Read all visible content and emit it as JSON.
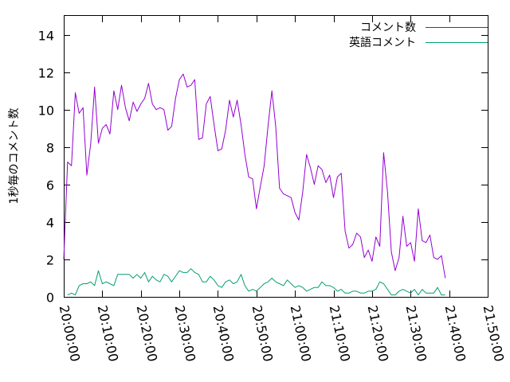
{
  "chart_data": {
    "type": "line",
    "ylabel": "1秒毎のコメント数",
    "xlabel": "",
    "title": "",
    "ylim": [
      0,
      15
    ],
    "xlim": [
      "20:00:00",
      "21:50:00"
    ],
    "y_ticks": [
      "0",
      "2",
      "4",
      "6",
      "8",
      "10",
      "12",
      "14"
    ],
    "x_ticks": [
      "20:00:00",
      "20:10:00",
      "20:20:00",
      "20:30:00",
      "20:40:00",
      "20:50:00",
      "21:00:00",
      "21:10:00",
      "21:20:00",
      "21:30:00",
      "21:40:00",
      "21:50:00"
    ],
    "grid": false,
    "legend_position": "top-right",
    "series": [
      {
        "name": "コメント数",
        "color": "#9400d3",
        "points": [
          [
            "20:00:00",
            2.0
          ],
          [
            "20:01:00",
            7.2
          ],
          [
            "20:02:00",
            7.0
          ],
          [
            "20:03:00",
            10.9
          ],
          [
            "20:04:00",
            9.8
          ],
          [
            "20:05:00",
            10.1
          ],
          [
            "20:06:00",
            6.5
          ],
          [
            "20:07:00",
            8.2
          ],
          [
            "20:08:00",
            11.2
          ],
          [
            "20:09:00",
            8.2
          ],
          [
            "20:10:00",
            9.0
          ],
          [
            "20:11:00",
            9.2
          ],
          [
            "20:12:00",
            8.7
          ],
          [
            "20:13:00",
            11.0
          ],
          [
            "20:14:00",
            10.0
          ],
          [
            "20:15:00",
            11.3
          ],
          [
            "20:16:00",
            10.1
          ],
          [
            "20:17:00",
            9.4
          ],
          [
            "20:18:00",
            10.4
          ],
          [
            "20:19:00",
            9.9
          ],
          [
            "20:20:00",
            10.3
          ],
          [
            "20:21:00",
            10.6
          ],
          [
            "20:22:00",
            11.4
          ],
          [
            "20:23:00",
            10.3
          ],
          [
            "20:24:00",
            10.0
          ],
          [
            "20:25:00",
            10.1
          ],
          [
            "20:26:00",
            10.0
          ],
          [
            "20:27:00",
            8.9
          ],
          [
            "20:28:00",
            9.1
          ],
          [
            "20:29:00",
            10.6
          ],
          [
            "20:30:00",
            11.6
          ],
          [
            "20:31:00",
            11.9
          ],
          [
            "20:32:00",
            11.2
          ],
          [
            "20:33:00",
            11.3
          ],
          [
            "20:34:00",
            11.6
          ],
          [
            "20:35:00",
            8.4
          ],
          [
            "20:36:00",
            8.5
          ],
          [
            "20:37:00",
            10.3
          ],
          [
            "20:38:00",
            10.7
          ],
          [
            "20:39:00",
            9.2
          ],
          [
            "20:40:00",
            7.8
          ],
          [
            "20:41:00",
            7.9
          ],
          [
            "20:42:00",
            8.9
          ],
          [
            "20:43:00",
            10.5
          ],
          [
            "20:44:00",
            9.6
          ],
          [
            "20:45:00",
            10.5
          ],
          [
            "20:46:00",
            9.2
          ],
          [
            "20:47:00",
            7.6
          ],
          [
            "20:48:00",
            6.4
          ],
          [
            "20:49:00",
            6.3
          ],
          [
            "20:50:00",
            4.7
          ],
          [
            "20:51:00",
            5.9
          ],
          [
            "20:52:00",
            7.0
          ],
          [
            "20:53:00",
            9.1
          ],
          [
            "20:54:00",
            11.0
          ],
          [
            "20:55:00",
            9.1
          ],
          [
            "20:56:00",
            5.8
          ],
          [
            "20:57:00",
            5.5
          ],
          [
            "20:58:00",
            5.4
          ],
          [
            "20:59:00",
            5.3
          ],
          [
            "21:00:00",
            4.5
          ],
          [
            "21:01:00",
            4.1
          ],
          [
            "21:02:00",
            5.6
          ],
          [
            "21:03:00",
            7.6
          ],
          [
            "21:04:00",
            6.9
          ],
          [
            "21:05:00",
            6.0
          ],
          [
            "21:06:00",
            7.0
          ],
          [
            "21:07:00",
            6.8
          ],
          [
            "21:08:00",
            6.1
          ],
          [
            "21:09:00",
            6.5
          ],
          [
            "21:10:00",
            5.3
          ],
          [
            "21:11:00",
            6.4
          ],
          [
            "21:12:00",
            6.6
          ],
          [
            "21:13:00",
            3.5
          ],
          [
            "21:14:00",
            2.6
          ],
          [
            "21:15:00",
            2.8
          ],
          [
            "21:16:00",
            3.4
          ],
          [
            "21:17:00",
            3.2
          ],
          [
            "21:18:00",
            2.1
          ],
          [
            "21:19:00",
            2.5
          ],
          [
            "21:20:00",
            1.9
          ],
          [
            "21:21:00",
            3.2
          ],
          [
            "21:22:00",
            2.7
          ],
          [
            "21:23:00",
            7.7
          ],
          [
            "21:24:00",
            5.6
          ],
          [
            "21:25:00",
            2.4
          ],
          [
            "21:26:00",
            1.4
          ],
          [
            "21:27:00",
            2.1
          ],
          [
            "21:28:00",
            4.3
          ],
          [
            "21:29:00",
            2.7
          ],
          [
            "21:30:00",
            2.9
          ],
          [
            "21:31:00",
            1.9
          ],
          [
            "21:32:00",
            4.7
          ],
          [
            "21:33:00",
            3.0
          ],
          [
            "21:34:00",
            2.9
          ],
          [
            "21:35:00",
            3.3
          ],
          [
            "21:36:00",
            2.1
          ],
          [
            "21:37:00",
            2.0
          ],
          [
            "21:38:00",
            2.2
          ],
          [
            "21:39:00",
            1.0
          ]
        ]
      },
      {
        "name": "英語コメント",
        "color": "#009e73",
        "points": [
          [
            "20:01:00",
            0.1
          ],
          [
            "20:02:00",
            0.2
          ],
          [
            "20:03:00",
            0.1
          ],
          [
            "20:04:00",
            0.6
          ],
          [
            "20:05:00",
            0.7
          ],
          [
            "20:06:00",
            0.7
          ],
          [
            "20:07:00",
            0.8
          ],
          [
            "20:08:00",
            0.6
          ],
          [
            "20:09:00",
            1.4
          ],
          [
            "20:10:00",
            0.7
          ],
          [
            "20:11:00",
            0.8
          ],
          [
            "20:12:00",
            0.7
          ],
          [
            "20:13:00",
            0.6
          ],
          [
            "20:14:00",
            1.2
          ],
          [
            "20:15:00",
            1.2
          ],
          [
            "20:16:00",
            1.2
          ],
          [
            "20:17:00",
            1.2
          ],
          [
            "20:18:00",
            1.0
          ],
          [
            "20:19:00",
            1.2
          ],
          [
            "20:20:00",
            1.0
          ],
          [
            "20:21:00",
            1.3
          ],
          [
            "20:22:00",
            0.8
          ],
          [
            "20:23:00",
            1.1
          ],
          [
            "20:24:00",
            0.9
          ],
          [
            "20:25:00",
            0.8
          ],
          [
            "20:26:00",
            1.2
          ],
          [
            "20:27:00",
            1.1
          ],
          [
            "20:28:00",
            0.8
          ],
          [
            "20:29:00",
            1.1
          ],
          [
            "20:30:00",
            1.4
          ],
          [
            "20:31:00",
            1.3
          ],
          [
            "20:32:00",
            1.3
          ],
          [
            "20:33:00",
            1.5
          ],
          [
            "20:34:00",
            1.3
          ],
          [
            "20:35:00",
            1.2
          ],
          [
            "20:36:00",
            0.8
          ],
          [
            "20:37:00",
            0.8
          ],
          [
            "20:38:00",
            1.1
          ],
          [
            "20:39:00",
            0.9
          ],
          [
            "20:40:00",
            0.6
          ],
          [
            "20:41:00",
            0.5
          ],
          [
            "20:42:00",
            0.8
          ],
          [
            "20:43:00",
            0.9
          ],
          [
            "20:44:00",
            0.7
          ],
          [
            "20:45:00",
            0.8
          ],
          [
            "20:46:00",
            1.2
          ],
          [
            "20:47:00",
            0.6
          ],
          [
            "20:48:00",
            0.3
          ],
          [
            "20:49:00",
            0.4
          ],
          [
            "20:50:00",
            0.3
          ],
          [
            "20:51:00",
            0.5
          ],
          [
            "20:52:00",
            0.7
          ],
          [
            "20:53:00",
            0.8
          ],
          [
            "20:54:00",
            1.0
          ],
          [
            "20:55:00",
            0.8
          ],
          [
            "20:56:00",
            0.7
          ],
          [
            "20:57:00",
            0.6
          ],
          [
            "20:58:00",
            0.9
          ],
          [
            "20:59:00",
            0.7
          ],
          [
            "21:00:00",
            0.5
          ],
          [
            "21:01:00",
            0.6
          ],
          [
            "21:02:00",
            0.5
          ],
          [
            "21:03:00",
            0.3
          ],
          [
            "21:04:00",
            0.4
          ],
          [
            "21:05:00",
            0.5
          ],
          [
            "21:06:00",
            0.5
          ],
          [
            "21:07:00",
            0.8
          ],
          [
            "21:08:00",
            0.6
          ],
          [
            "21:09:00",
            0.6
          ],
          [
            "21:10:00",
            0.5
          ],
          [
            "21:11:00",
            0.3
          ],
          [
            "21:12:00",
            0.4
          ],
          [
            "21:13:00",
            0.2
          ],
          [
            "21:14:00",
            0.2
          ],
          [
            "21:15:00",
            0.3
          ],
          [
            "21:16:00",
            0.3
          ],
          [
            "21:17:00",
            0.2
          ],
          [
            "21:18:00",
            0.2
          ],
          [
            "21:19:00",
            0.3
          ],
          [
            "21:20:00",
            0.3
          ],
          [
            "21:21:00",
            0.4
          ],
          [
            "21:22:00",
            0.8
          ],
          [
            "21:23:00",
            0.7
          ],
          [
            "21:24:00",
            0.4
          ],
          [
            "21:25:00",
            0.1
          ],
          [
            "21:26:00",
            0.1
          ],
          [
            "21:27:00",
            0.3
          ],
          [
            "21:28:00",
            0.4
          ],
          [
            "21:29:00",
            0.3
          ],
          [
            "21:30:00",
            0.2
          ],
          [
            "21:31:00",
            0.4
          ],
          [
            "21:32:00",
            0.1
          ],
          [
            "21:33:00",
            0.4
          ],
          [
            "21:34:00",
            0.2
          ],
          [
            "21:35:00",
            0.2
          ],
          [
            "21:36:00",
            0.2
          ],
          [
            "21:37:00",
            0.5
          ],
          [
            "21:38:00",
            0.1
          ],
          [
            "21:39:00",
            0.1
          ]
        ]
      }
    ]
  }
}
